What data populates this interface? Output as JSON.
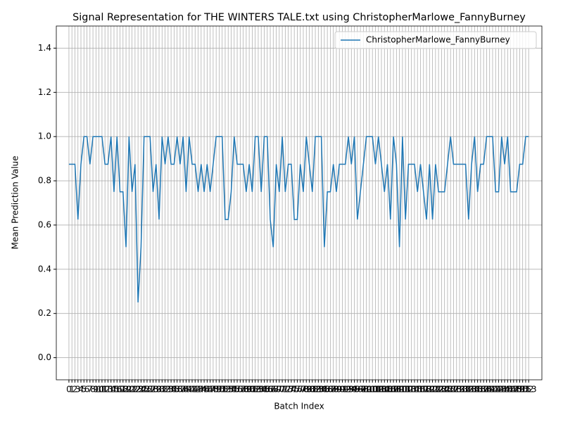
{
  "chart_data": {
    "type": "line",
    "title": "Signal Representation for THE WINTERS TALE.txt using ChristopherMarlowe_FannyBurney",
    "xlabel": "Batch Index",
    "ylabel": "Mean Prediction Value",
    "x": [
      0,
      1,
      2,
      3,
      4,
      5,
      6,
      7,
      8,
      9,
      10,
      11,
      12,
      13,
      14,
      15,
      16,
      17,
      18,
      19,
      20,
      21,
      22,
      23,
      24,
      25,
      26,
      27,
      28,
      29,
      30,
      31,
      32,
      33,
      34,
      35,
      36,
      37,
      38,
      39,
      40,
      41,
      42,
      43,
      44,
      45,
      46,
      47,
      48,
      49,
      50,
      51,
      52,
      53,
      54,
      55,
      56,
      57,
      58,
      59,
      60,
      61,
      62,
      63,
      64,
      65,
      66,
      67,
      68,
      69,
      70,
      71,
      72,
      73,
      74,
      75,
      76,
      77,
      78,
      79,
      80,
      81,
      82,
      83,
      84,
      85,
      86,
      87,
      88,
      89,
      90,
      91,
      92,
      93,
      94,
      95,
      96,
      97,
      98,
      99,
      100,
      101,
      102,
      103,
      104,
      105,
      106,
      107,
      108,
      109,
      110,
      111,
      112,
      113,
      114,
      115,
      116,
      117,
      118,
      119,
      120,
      121,
      122,
      123,
      124,
      125,
      126,
      127,
      128,
      129,
      130,
      131,
      132,
      133,
      134,
      135,
      136,
      137,
      138,
      139,
      140,
      141,
      142,
      143,
      144,
      145,
      146,
      147,
      148,
      149,
      150,
      151,
      152,
      153
    ],
    "series": [
      {
        "name": "ChristopherMarlowe_FannyBurney",
        "color": "#1f77b4",
        "values": [
          0.875,
          0.875,
          0.875,
          0.625,
          0.875,
          1.0,
          1.0,
          0.875,
          1.0,
          1.0,
          1.0,
          1.0,
          0.875,
          0.875,
          1.0,
          0.75,
          1.0,
          0.75,
          0.75,
          0.5,
          1.0,
          0.75,
          0.875,
          0.25,
          0.5,
          1.0,
          1.0,
          1.0,
          0.75,
          0.875,
          0.625,
          1.0,
          0.875,
          1.0,
          0.875,
          0.875,
          1.0,
          0.875,
          1.0,
          0.75,
          1.0,
          0.875,
          0.875,
          0.75,
          0.875,
          0.75,
          0.875,
          0.75,
          0.875,
          1.0,
          1.0,
          1.0,
          0.625,
          0.625,
          0.75,
          1.0,
          0.875,
          0.875,
          0.875,
          0.75,
          0.875,
          0.75,
          1.0,
          1.0,
          0.75,
          1.0,
          1.0,
          0.625,
          0.5,
          0.875,
          0.75,
          1.0,
          0.75,
          0.875,
          0.875,
          0.625,
          0.625,
          0.875,
          0.75,
          1.0,
          0.875,
          0.75,
          1.0,
          1.0,
          1.0,
          0.5,
          0.75,
          0.75,
          0.875,
          0.75,
          0.875,
          0.875,
          0.875,
          1.0,
          0.875,
          1.0,
          0.625,
          0.75,
          0.875,
          1.0,
          1.0,
          1.0,
          0.875,
          1.0,
          0.875,
          0.75,
          0.875,
          0.625,
          1.0,
          0.875,
          0.5,
          1.0,
          0.625,
          0.875,
          0.875,
          0.875,
          0.75,
          0.875,
          0.75,
          0.625,
          0.875,
          0.625,
          0.875,
          0.75,
          0.75,
          0.75,
          0.875,
          1.0,
          0.875,
          0.875,
          0.875,
          0.875,
          0.875,
          0.625,
          0.875,
          1.0,
          0.75,
          0.875,
          0.875,
          1.0,
          1.0,
          1.0,
          0.75,
          0.75,
          1.0,
          0.875,
          1.0,
          0.75,
          0.75,
          0.75,
          0.875,
          0.875,
          1.0,
          1.0
        ]
      }
    ],
    "xlim": [
      -4.2,
      157.4
    ],
    "xticks": [
      0,
      1,
      2,
      3,
      4,
      5,
      6,
      7,
      8,
      9,
      10,
      11,
      12,
      13,
      14,
      15,
      16,
      17,
      18,
      19,
      20,
      21,
      22,
      23,
      24,
      25,
      26,
      27,
      28,
      29,
      30,
      31,
      32,
      33,
      34,
      35,
      36,
      37,
      38,
      39,
      40,
      41,
      42,
      43,
      44,
      45,
      46,
      47,
      48,
      49,
      50,
      51,
      52,
      53,
      54,
      55,
      56,
      57,
      58,
      59,
      60,
      61,
      62,
      63,
      64,
      65,
      66,
      67,
      68,
      69,
      70,
      71,
      72,
      73,
      74,
      75,
      76,
      77,
      78,
      79,
      80,
      81,
      82,
      83,
      84,
      85,
      86,
      87,
      88,
      89,
      90,
      91,
      92,
      93,
      94,
      95,
      96,
      97,
      98,
      99,
      100,
      101,
      102,
      103,
      104,
      105,
      106,
      107,
      108,
      109,
      110,
      111,
      112,
      113,
      114,
      115,
      116,
      117,
      118,
      119,
      120,
      121,
      122,
      123,
      124,
      125,
      126,
      127,
      128,
      129,
      130,
      131,
      132,
      133,
      134,
      135,
      136,
      137,
      138,
      139,
      140,
      141,
      142,
      143,
      144,
      145,
      146,
      147,
      148,
      149,
      150,
      151,
      152,
      153
    ],
    "ylim": [
      -0.1,
      1.5
    ],
    "yticks": [
      {
        "value": 0,
        "label": "0.0"
      },
      0.2,
      0.4,
      0.6,
      0.8,
      {
        "value": 1,
        "label": "1.0"
      },
      1.2,
      1.4
    ],
    "grid": true,
    "legend": "upper right"
  }
}
